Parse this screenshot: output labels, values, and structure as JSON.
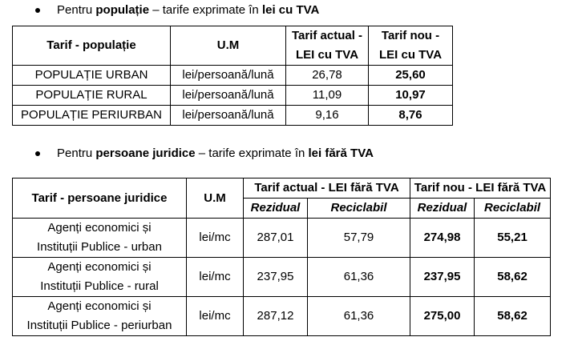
{
  "bullet1": {
    "pre": "Pentru ",
    "bold1": "populație",
    "mid": " – tarife exprimate în ",
    "bold2": "lei cu TVA"
  },
  "table1": {
    "headers": {
      "tarif": "Tarif - populație",
      "um": "U.M",
      "actual_line1": "Tarif actual -",
      "actual_line2": "LEI cu TVA",
      "nou_line1": "Tarif nou -",
      "nou_line2": "LEI cu TVA"
    },
    "rows": [
      {
        "tarif": "POPULAȚIE URBAN",
        "um": "lei/persoană/lună",
        "actual": "26,78",
        "nou": "25,60"
      },
      {
        "tarif": "POPULAȚIE RURAL",
        "um": "lei/persoană/lună",
        "actual": "11,09",
        "nou": "10,97"
      },
      {
        "tarif": "POPULAȚIE PERIURBAN",
        "um": "lei/persoană/lună",
        "actual": "9,16",
        "nou": "8,76"
      }
    ]
  },
  "bullet2": {
    "pre": "Pentru ",
    "bold1": "persoane juridice",
    "mid": " – tarife exprimate în ",
    "bold2": "lei fără TVA"
  },
  "table2": {
    "headers": {
      "tarif": "Tarif - persoane juridice",
      "um": "U.M",
      "actual": "Tarif actual - LEI fără TVA",
      "nou": "Tarif nou - LEI fără TVA",
      "rezidual": "Rezidual",
      "reciclabil": "Reciclabil"
    },
    "rows": [
      {
        "line1": "Agenți economici și",
        "line2": "Instituții Publice - urban",
        "um": "lei/mc",
        "act_rez": "287,01",
        "act_rec": "57,79",
        "nou_rez": "274,98",
        "nou_rec": "55,21"
      },
      {
        "line1": "Agenți economici și",
        "line2": "Instituții Publice - rural",
        "um": "lei/mc",
        "act_rez": "237,95",
        "act_rec": "61,36",
        "nou_rez": "237,95",
        "nou_rec": "58,62"
      },
      {
        "line1": "Agenți economici și",
        "line2": "Instituții Publice - periurban",
        "um": "lei/mc",
        "act_rez": "287,12",
        "act_rec": "61,36",
        "nou_rez": "275,00",
        "nou_rec": "58,62"
      }
    ]
  }
}
